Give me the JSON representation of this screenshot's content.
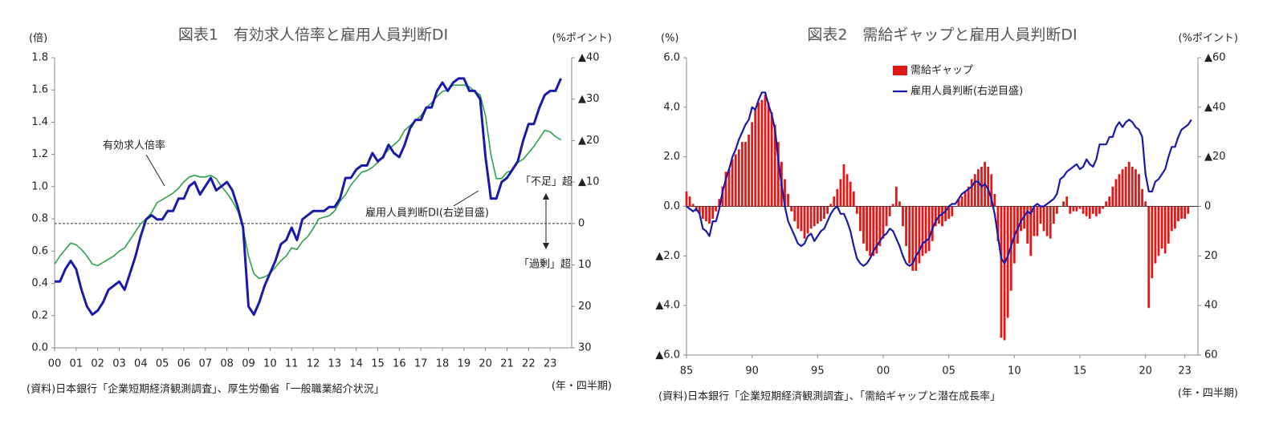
{
  "chart_data": [
    {
      "type": "line",
      "title": "図表1　有効求人倍率と雇用人員判断DI",
      "y_label": "(倍)",
      "y2_label": "(%ポイント)",
      "x_label": "(年・四半期)",
      "source": "(資料)日本銀行「企業短期経済観測調査」、厚生労働省「一般職業紹介状況」",
      "annotations": [
        "有効求人倍率",
        "雇用人員判断DI(右逆目盛)",
        "「不足」超",
        "「過剰」超"
      ],
      "zero_line": "dashed",
      "zero_axis": "y2",
      "y2_inverted": true,
      "xlim": [
        2000,
        2024
      ],
      "xticks": [
        {
          "value": 2000,
          "label": "00"
        },
        {
          "value": 2001,
          "label": "01"
        },
        {
          "value": 2002,
          "label": "02"
        },
        {
          "value": 2003,
          "label": "03"
        },
        {
          "value": 2004,
          "label": "04"
        },
        {
          "value": 2005,
          "label": "05"
        },
        {
          "value": 2006,
          "label": "06"
        },
        {
          "value": 2007,
          "label": "07"
        },
        {
          "value": 2008,
          "label": "08"
        },
        {
          "value": 2009,
          "label": "09"
        },
        {
          "value": 2010,
          "label": "10"
        },
        {
          "value": 2011,
          "label": "11"
        },
        {
          "value": 2012,
          "label": "12"
        },
        {
          "value": 2013,
          "label": "13"
        },
        {
          "value": 2014,
          "label": "14"
        },
        {
          "value": 2015,
          "label": "15"
        },
        {
          "value": 2016,
          "label": "16"
        },
        {
          "value": 2017,
          "label": "17"
        },
        {
          "value": 2018,
          "label": "18"
        },
        {
          "value": 2019,
          "label": "19"
        },
        {
          "value": 2020,
          "label": "20"
        },
        {
          "value": 2021,
          "label": "21"
        },
        {
          "value": 2022,
          "label": "22"
        },
        {
          "value": 2023,
          "label": "23"
        }
      ],
      "ylim": [
        0,
        1.8
      ],
      "yticks": [
        {
          "value": 0,
          "label": "0.0"
        },
        {
          "value": 0.2,
          "label": "0.2"
        },
        {
          "value": 0.4,
          "label": "0.4"
        },
        {
          "value": 0.6,
          "label": "0.6"
        },
        {
          "value": 0.8,
          "label": "0.8"
        },
        {
          "value": 1,
          "label": "1.0"
        },
        {
          "value": 1.2,
          "label": "1.2"
        },
        {
          "value": 1.4,
          "label": "1.4"
        },
        {
          "value": 1.6,
          "label": "1.6"
        },
        {
          "value": 1.8,
          "label": "1.8"
        }
      ],
      "y2lim": [
        -40,
        30
      ],
      "y2ticks": [
        {
          "value": -40,
          "label": "▲40"
        },
        {
          "value": -30,
          "label": "▲30"
        },
        {
          "value": -20,
          "label": "▲20"
        },
        {
          "value": -10,
          "label": "▲10"
        },
        0,
        10,
        20,
        30
      ],
      "x": [
        2000,
        2000.25,
        2000.5,
        2000.75,
        2001,
        2001.25,
        2001.5,
        2001.75,
        2002,
        2002.25,
        2002.5,
        2002.75,
        2003,
        2003.25,
        2003.5,
        2003.75,
        2004,
        2004.25,
        2004.5,
        2004.75,
        2005,
        2005.25,
        2005.5,
        2005.75,
        2006,
        2006.25,
        2006.5,
        2006.75,
        2007,
        2007.25,
        2007.5,
        2007.75,
        2008,
        2008.25,
        2008.5,
        2008.75,
        2009,
        2009.25,
        2009.5,
        2009.75,
        2010,
        2010.25,
        2010.5,
        2010.75,
        2011,
        2011.25,
        2011.5,
        2011.75,
        2012,
        2012.25,
        2012.5,
        2012.75,
        2013,
        2013.25,
        2013.5,
        2013.75,
        2014,
        2014.25,
        2014.5,
        2014.75,
        2015,
        2015.25,
        2015.5,
        2015.75,
        2016,
        2016.25,
        2016.5,
        2016.75,
        2017,
        2017.25,
        2017.5,
        2017.75,
        2018,
        2018.25,
        2018.5,
        2018.75,
        2019,
        2019.25,
        2019.5,
        2019.75,
        2020,
        2020.25,
        2020.5,
        2020.75,
        2021,
        2021.25,
        2021.5,
        2021.75,
        2022,
        2022.25,
        2022.5,
        2022.75,
        2023,
        2023.25,
        2023.5
      ],
      "series": [
        {
          "name": "有効求人倍率",
          "color": "#2ca24a",
          "width": 1.6,
          "values": [
            0.52,
            0.57,
            0.61,
            0.65,
            0.64,
            0.61,
            0.57,
            0.52,
            0.51,
            0.53,
            0.55,
            0.57,
            0.6,
            0.62,
            0.67,
            0.72,
            0.77,
            0.8,
            0.84,
            0.9,
            0.92,
            0.94,
            0.96,
            0.99,
            1.03,
            1.06,
            1.07,
            1.06,
            1.06,
            1.07,
            1.05,
            1.0,
            0.96,
            0.91,
            0.85,
            0.74,
            0.57,
            0.46,
            0.43,
            0.44,
            0.46,
            0.5,
            0.54,
            0.57,
            0.62,
            0.61,
            0.66,
            0.69,
            0.74,
            0.8,
            0.81,
            0.82,
            0.85,
            0.91,
            0.95,
            1.01,
            1.05,
            1.09,
            1.1,
            1.12,
            1.15,
            1.19,
            1.23,
            1.26,
            1.29,
            1.35,
            1.38,
            1.41,
            1.44,
            1.49,
            1.52,
            1.56,
            1.59,
            1.6,
            1.63,
            1.63,
            1.63,
            1.62,
            1.59,
            1.57,
            1.44,
            1.2,
            1.05,
            1.05,
            1.09,
            1.1,
            1.15,
            1.17,
            1.21,
            1.25,
            1.3,
            1.35,
            1.34,
            1.31,
            1.29
          ]
        },
        {
          "name": "雇用人員判断DI",
          "color": "#1a1aa8",
          "width": 3,
          "axis": "y2",
          "values": [
            14,
            14,
            11,
            9,
            11,
            16,
            20,
            22,
            21,
            19,
            16,
            15,
            14,
            16,
            12,
            8,
            3,
            -1,
            -2,
            -1,
            -1,
            -3,
            -3,
            -6,
            -6,
            -9,
            -10,
            -7,
            -9,
            -11,
            -8,
            -9,
            -10,
            -8,
            -4,
            1,
            20,
            22,
            19,
            15,
            12,
            9,
            5,
            4,
            1,
            4,
            -1,
            -2,
            -3,
            -3,
            -3,
            -4,
            -4,
            -6,
            -11,
            -11,
            -13,
            -14,
            -14,
            -17,
            -15,
            -16,
            -19,
            -17,
            -16,
            -19,
            -23,
            -25,
            -25,
            -28,
            -28,
            -32,
            -34,
            -32,
            -34,
            -35,
            -35,
            -32,
            -32,
            -30,
            -16,
            -6,
            -6,
            -10,
            -11,
            -13,
            -15,
            -20,
            -24,
            -24,
            -28,
            -31,
            -32,
            -32,
            -35
          ]
        }
      ]
    },
    {
      "type": "bar",
      "title": "図表2　需給ギャップと雇用人員判断DI",
      "y_label": "(%)",
      "y2_label": "(%ポイント)",
      "x_label": "(年・四半期)",
      "source": "(資料)日本銀行「企業短期経済観測調査」、「需給ギャップと潜在成長率」",
      "zero_line": "solid",
      "zero_axis": "y",
      "y2_inverted": true,
      "legend": "top-center",
      "xlim": [
        1985,
        2024
      ],
      "xticks": [
        {
          "value": 1985,
          "label": "85"
        },
        {
          "value": 1990,
          "label": "90"
        },
        {
          "value": 1995,
          "label": "95"
        },
        {
          "value": 2000,
          "label": "00"
        },
        {
          "value": 2005,
          "label": "05"
        },
        {
          "value": 2010,
          "label": "10"
        },
        {
          "value": 2015,
          "label": "15"
        },
        {
          "value": 2020,
          "label": "20"
        },
        {
          "value": 2023,
          "label": "23"
        }
      ],
      "ylim": [
        -6,
        6
      ],
      "yticks": [
        {
          "value": -6,
          "label": "▲6.0"
        },
        {
          "value": -4,
          "label": "▲4.0"
        },
        {
          "value": -2,
          "label": "▲2.0"
        },
        {
          "value": 0,
          "label": "0.0"
        },
        {
          "value": 2,
          "label": "2.0"
        },
        {
          "value": 4,
          "label": "4.0"
        },
        {
          "value": 6,
          "label": "6.0"
        }
      ],
      "y2lim": [
        -60,
        60
      ],
      "y2ticks": [
        {
          "value": -60,
          "label": "▲60"
        },
        {
          "value": -40,
          "label": "▲40"
        },
        {
          "value": -20,
          "label": "▲20"
        },
        0,
        20,
        40,
        60
      ],
      "x": [
        1985,
        1985.25,
        1985.5,
        1985.75,
        1986,
        1986.25,
        1986.5,
        1986.75,
        1987,
        1987.25,
        1987.5,
        1987.75,
        1988,
        1988.25,
        1988.5,
        1988.75,
        1989,
        1989.25,
        1989.5,
        1989.75,
        1990,
        1990.25,
        1990.5,
        1990.75,
        1991,
        1991.25,
        1991.5,
        1991.75,
        1992,
        1992.25,
        1992.5,
        1992.75,
        1993,
        1993.25,
        1993.5,
        1993.75,
        1994,
        1994.25,
        1994.5,
        1994.75,
        1995,
        1995.25,
        1995.5,
        1995.75,
        1996,
        1996.25,
        1996.5,
        1996.75,
        1997,
        1997.25,
        1997.5,
        1997.75,
        1998,
        1998.25,
        1998.5,
        1998.75,
        1999,
        1999.25,
        1999.5,
        1999.75,
        2000,
        2000.25,
        2000.5,
        2000.75,
        2001,
        2001.25,
        2001.5,
        2001.75,
        2002,
        2002.25,
        2002.5,
        2002.75,
        2003,
        2003.25,
        2003.5,
        2003.75,
        2004,
        2004.25,
        2004.5,
        2004.75,
        2005,
        2005.25,
        2005.5,
        2005.75,
        2006,
        2006.25,
        2006.5,
        2006.75,
        2007,
        2007.25,
        2007.5,
        2007.75,
        2008,
        2008.25,
        2008.5,
        2008.75,
        2009,
        2009.25,
        2009.5,
        2009.75,
        2010,
        2010.25,
        2010.5,
        2010.75,
        2011,
        2011.25,
        2011.5,
        2011.75,
        2012,
        2012.25,
        2012.5,
        2012.75,
        2013,
        2013.25,
        2013.5,
        2013.75,
        2014,
        2014.25,
        2014.5,
        2014.75,
        2015,
        2015.25,
        2015.5,
        2015.75,
        2016,
        2016.25,
        2016.5,
        2016.75,
        2017,
        2017.25,
        2017.5,
        2017.75,
        2018,
        2018.25,
        2018.5,
        2018.75,
        2019,
        2019.25,
        2019.5,
        2019.75,
        2020,
        2020.25,
        2020.5,
        2020.75,
        2021,
        2021.25,
        2021.5,
        2021.75,
        2022,
        2022.25,
        2022.5,
        2022.75,
        2023,
        2023.25,
        2023.5
      ],
      "series": [
        {
          "name": "需給ギャップ",
          "color": "#e01818",
          "type": "bar",
          "values": [
            0.6,
            0.4,
            0.1,
            -0.2,
            -0.3,
            -0.5,
            -0.6,
            -0.7,
            -0.5,
            -0.2,
            0.3,
            0.8,
            1.4,
            1.5,
            1.9,
            2.1,
            2.3,
            2.6,
            2.6,
            2.9,
            3.4,
            3.9,
            4.2,
            4.3,
            4.5,
            4.2,
            3.8,
            3.3,
            2.6,
            1.8,
            1.1,
            0.5,
            -0.2,
            -0.6,
            -0.9,
            -1.0,
            -1.3,
            -1.1,
            -0.9,
            -0.8,
            -0.7,
            -0.6,
            -0.5,
            -0.3,
            0.1,
            0.4,
            0.7,
            1.1,
            1.7,
            1.3,
            1.0,
            0.6,
            -0.3,
            -1.0,
            -1.5,
            -1.8,
            -2.0,
            -2.0,
            -1.9,
            -1.6,
            -1.3,
            -0.8,
            -0.4,
            0.1,
            0.8,
            0.2,
            -0.8,
            -1.6,
            -2.3,
            -2.6,
            -2.6,
            -2.3,
            -2.0,
            -1.9,
            -1.8,
            -1.4,
            -0.8,
            -0.7,
            -0.8,
            -0.6,
            -0.5,
            -0.4,
            0.0,
            0.3,
            0.4,
            0.6,
            0.8,
            1.1,
            1.3,
            1.5,
            1.6,
            1.8,
            1.6,
            1.3,
            0.5,
            -1.4,
            -5.3,
            -5.4,
            -4.5,
            -3.4,
            -2.3,
            -1.5,
            -1.0,
            -0.9,
            -1.5,
            -2.0,
            -1.2,
            -1.2,
            -0.7,
            -1.0,
            -1.2,
            -1.3,
            -0.7,
            -0.3,
            0.0,
            0.2,
            0.4,
            -0.3,
            -0.2,
            -0.2,
            -0.1,
            -0.3,
            -0.4,
            -0.5,
            -0.3,
            -0.4,
            -0.3,
            -0.1,
            0.2,
            0.4,
            0.8,
            1.1,
            1.3,
            1.5,
            1.6,
            1.8,
            1.6,
            1.5,
            1.3,
            0.7,
            0.2,
            -4.1,
            -2.9,
            -2.3,
            -2.0,
            -1.7,
            -1.9,
            -1.5,
            -1.0,
            -0.9,
            -0.6,
            -0.5,
            -0.5,
            -0.3,
            null
          ]
        },
        {
          "name": "雇用人員判断(右逆目盛)",
          "color": "#1a1aa8",
          "width": 2.2,
          "type": "line",
          "axis": "y2",
          "values": [
            0,
            1,
            2,
            1,
            3,
            9,
            10,
            12,
            6,
            6,
            1,
            -6,
            -11,
            -15,
            -20,
            -23,
            -27,
            -30,
            -33,
            -35,
            -40,
            -39,
            -43,
            -46,
            -46,
            -41,
            -37,
            -31,
            -19,
            -9,
            0,
            6,
            9,
            12,
            15,
            16,
            15,
            12,
            11,
            14,
            12,
            10,
            9,
            6,
            3,
            1,
            0,
            3,
            3,
            6,
            10,
            16,
            21,
            23,
            24,
            23,
            21,
            18,
            16,
            14,
            12,
            11,
            9,
            10,
            13,
            16,
            20,
            23,
            24,
            23,
            20,
            18,
            15,
            14,
            13,
            9,
            6,
            4,
            3,
            2,
            0,
            -1,
            -1,
            -3,
            -5,
            -6,
            -7,
            -8,
            -10,
            -10,
            -8,
            -9,
            -7,
            -3,
            3,
            12,
            21,
            23,
            20,
            16,
            12,
            9,
            6,
            4,
            2,
            3,
            0,
            -1,
            0,
            0,
            -1,
            -2,
            -3,
            -5,
            -11,
            -12,
            -14,
            -15,
            -16,
            -17,
            -15,
            -16,
            -19,
            -17,
            -16,
            -19,
            -25,
            -25,
            -25,
            -28,
            -28,
            -32,
            -34,
            -32,
            -34,
            -35,
            -34,
            -32,
            -31,
            -28,
            -13,
            -6,
            -6,
            -10,
            -11,
            -13,
            -15,
            -20,
            -24,
            -24,
            -28,
            -31,
            -32,
            -33,
            -35
          ]
        }
      ]
    }
  ]
}
